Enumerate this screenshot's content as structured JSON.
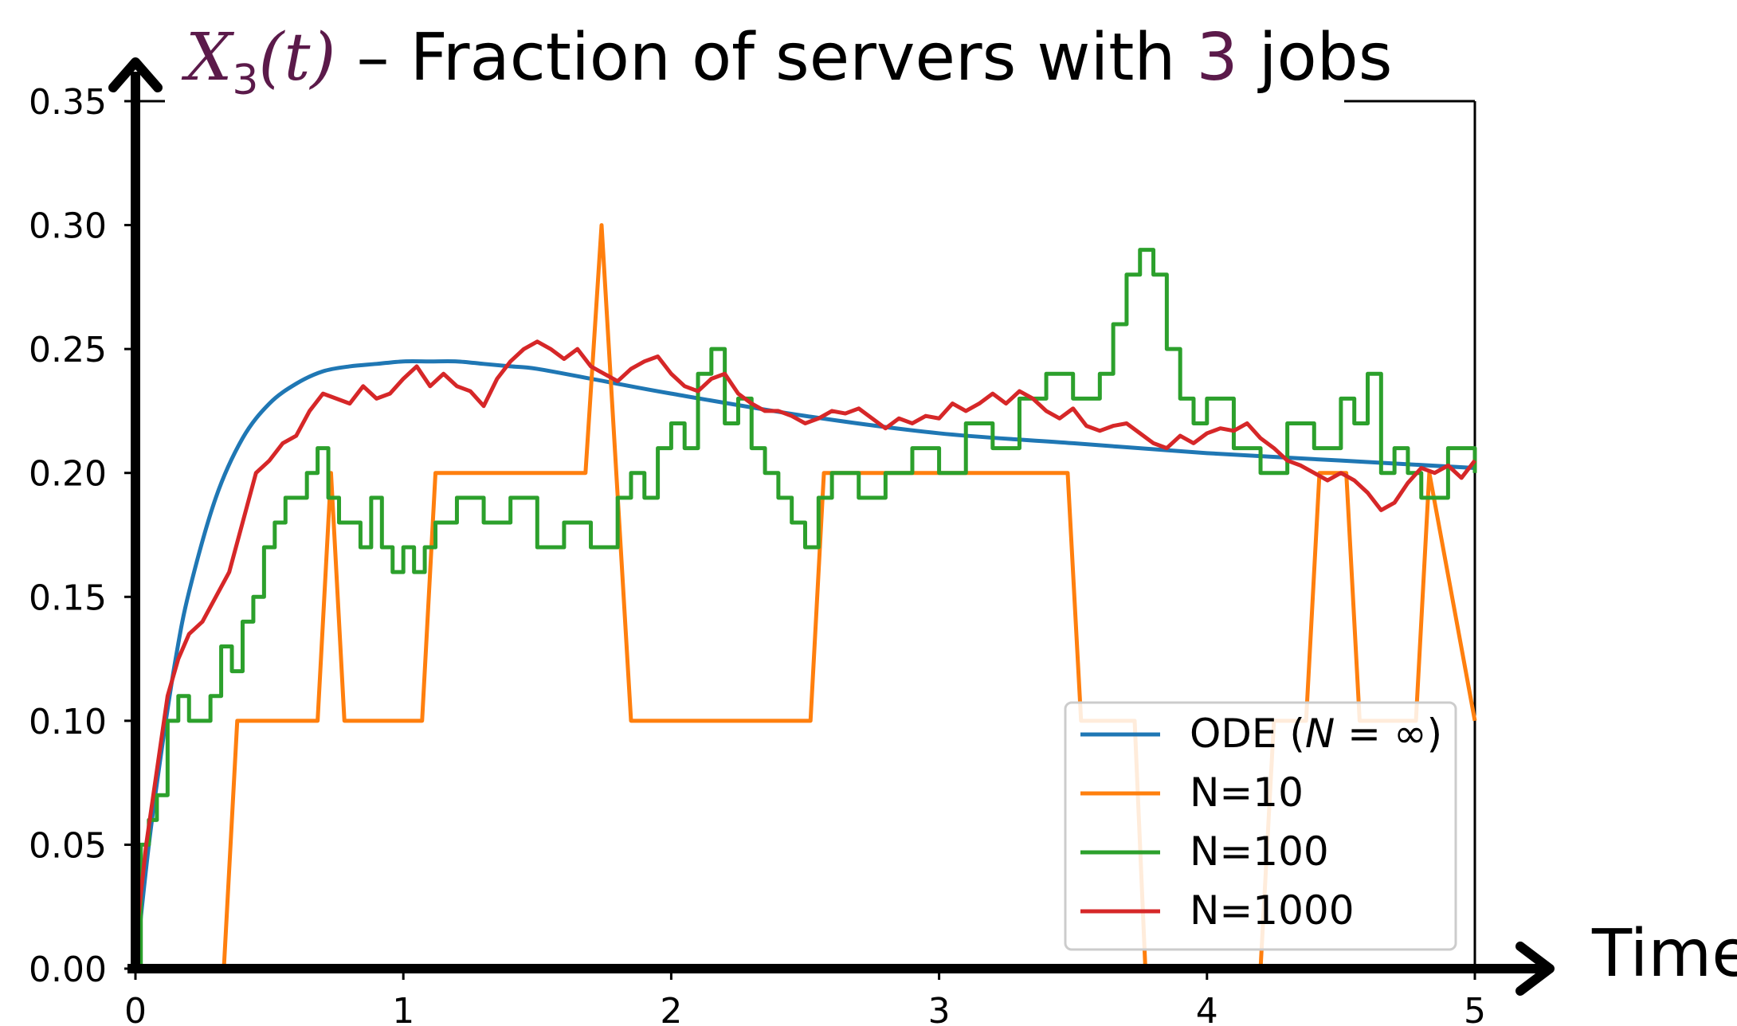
{
  "chart_data": {
    "type": "line",
    "title": {
      "math_var": "X",
      "math_sub": "3",
      "math_arg": "(t)",
      "dash": " – ",
      "text_pre": "Fraction of servers with ",
      "highlight": "3",
      "text_post": " jobs"
    },
    "xlabel": "Time",
    "ylabel": "",
    "xlim": [
      0,
      5
    ],
    "ylim": [
      0,
      0.35
    ],
    "xticks": [
      "0",
      "1",
      "2",
      "3",
      "4",
      "5"
    ],
    "yticks": [
      "0.00",
      "0.05",
      "0.10",
      "0.15",
      "0.20",
      "0.25",
      "0.30",
      "0.35"
    ],
    "grid": false,
    "legend_position": "lower-right",
    "colors": {
      "title_accent": "#5b1a4a",
      "ode": "#1f77b4",
      "n10": "#ff7f0e",
      "n100": "#2ca02c",
      "n1000": "#d62728"
    },
    "series": [
      {
        "name": "ODE (N = ∞)",
        "name_parts": [
          "ODE (",
          "N",
          " = ∞)"
        ],
        "style": "smooth",
        "x": [
          0,
          0.05,
          0.1,
          0.15,
          0.2,
          0.3,
          0.4,
          0.5,
          0.6,
          0.7,
          0.8,
          0.9,
          1.0,
          1.1,
          1.2,
          1.3,
          1.4,
          1.5,
          1.75,
          2.0,
          2.5,
          3.0,
          3.5,
          4.0,
          4.5,
          5.0
        ],
        "values": [
          0.0,
          0.05,
          0.09,
          0.125,
          0.152,
          0.19,
          0.214,
          0.228,
          0.236,
          0.241,
          0.243,
          0.244,
          0.245,
          0.245,
          0.245,
          0.244,
          0.243,
          0.242,
          0.237,
          0.232,
          0.223,
          0.216,
          0.212,
          0.208,
          0.205,
          0.202
        ]
      },
      {
        "name": "N=10",
        "style": "linear",
        "x": [
          0,
          0.33,
          0.38,
          0.68,
          0.73,
          0.78,
          1.07,
          1.12,
          1.68,
          1.74,
          1.85,
          2.52,
          2.57,
          3.48,
          3.53,
          3.73,
          3.77,
          4.2,
          4.25,
          4.37,
          4.42,
          4.52,
          4.57,
          4.78,
          4.83,
          5.0
        ],
        "values": [
          0,
          0,
          0.1,
          0.1,
          0.2,
          0.1,
          0.1,
          0.2,
          0.2,
          0.3,
          0.1,
          0.1,
          0.2,
          0.2,
          0.1,
          0.1,
          0.0,
          0.0,
          0.1,
          0.1,
          0.2,
          0.2,
          0.1,
          0.1,
          0.2,
          0.1
        ]
      },
      {
        "name": "N=100",
        "style": "step",
        "x": [
          0,
          0.02,
          0.05,
          0.08,
          0.12,
          0.16,
          0.2,
          0.24,
          0.28,
          0.32,
          0.36,
          0.4,
          0.44,
          0.48,
          0.52,
          0.56,
          0.6,
          0.64,
          0.68,
          0.72,
          0.76,
          0.8,
          0.84,
          0.88,
          0.92,
          0.96,
          1.0,
          1.04,
          1.08,
          1.12,
          1.16,
          1.2,
          1.3,
          1.4,
          1.5,
          1.6,
          1.7,
          1.8,
          1.85,
          1.9,
          1.95,
          2.0,
          2.05,
          2.1,
          2.15,
          2.2,
          2.25,
          2.3,
          2.35,
          2.4,
          2.45,
          2.5,
          2.55,
          2.6,
          2.7,
          2.8,
          2.9,
          3.0,
          3.1,
          3.2,
          3.3,
          3.4,
          3.5,
          3.6,
          3.65,
          3.7,
          3.75,
          3.8,
          3.85,
          3.9,
          3.95,
          4.0,
          4.1,
          4.2,
          4.3,
          4.4,
          4.5,
          4.55,
          4.6,
          4.65,
          4.7,
          4.75,
          4.8,
          4.9,
          5.0
        ],
        "values": [
          0.0,
          0.05,
          0.06,
          0.07,
          0.1,
          0.11,
          0.1,
          0.1,
          0.11,
          0.13,
          0.12,
          0.14,
          0.15,
          0.17,
          0.18,
          0.19,
          0.19,
          0.2,
          0.21,
          0.19,
          0.18,
          0.18,
          0.17,
          0.19,
          0.17,
          0.16,
          0.17,
          0.16,
          0.17,
          0.18,
          0.18,
          0.19,
          0.18,
          0.19,
          0.17,
          0.18,
          0.17,
          0.19,
          0.2,
          0.19,
          0.21,
          0.22,
          0.21,
          0.24,
          0.25,
          0.22,
          0.23,
          0.21,
          0.2,
          0.19,
          0.18,
          0.17,
          0.19,
          0.2,
          0.19,
          0.2,
          0.21,
          0.2,
          0.22,
          0.21,
          0.23,
          0.24,
          0.23,
          0.24,
          0.26,
          0.28,
          0.29,
          0.28,
          0.25,
          0.23,
          0.22,
          0.23,
          0.21,
          0.2,
          0.22,
          0.21,
          0.23,
          0.22,
          0.24,
          0.2,
          0.21,
          0.2,
          0.19,
          0.21,
          0.2
        ]
      },
      {
        "name": "N=1000",
        "style": "linear",
        "x": [
          0,
          0.04,
          0.08,
          0.12,
          0.16,
          0.2,
          0.25,
          0.3,
          0.35,
          0.4,
          0.45,
          0.5,
          0.55,
          0.6,
          0.65,
          0.7,
          0.75,
          0.8,
          0.85,
          0.9,
          0.95,
          1.0,
          1.05,
          1.1,
          1.15,
          1.2,
          1.25,
          1.3,
          1.35,
          1.4,
          1.45,
          1.5,
          1.55,
          1.6,
          1.65,
          1.7,
          1.75,
          1.8,
          1.85,
          1.9,
          1.95,
          2.0,
          2.05,
          2.1,
          2.15,
          2.2,
          2.25,
          2.3,
          2.35,
          2.4,
          2.45,
          2.5,
          2.55,
          2.6,
          2.65,
          2.7,
          2.75,
          2.8,
          2.85,
          2.9,
          2.95,
          3.0,
          3.05,
          3.1,
          3.15,
          3.2,
          3.25,
          3.3,
          3.35,
          3.4,
          3.45,
          3.5,
          3.55,
          3.6,
          3.65,
          3.7,
          3.75,
          3.8,
          3.85,
          3.9,
          3.95,
          4.0,
          4.05,
          4.1,
          4.15,
          4.2,
          4.25,
          4.3,
          4.35,
          4.4,
          4.45,
          4.5,
          4.55,
          4.6,
          4.65,
          4.7,
          4.75,
          4.8,
          4.85,
          4.9,
          4.95,
          5.0
        ],
        "values": [
          0.01,
          0.05,
          0.08,
          0.11,
          0.125,
          0.135,
          0.14,
          0.15,
          0.16,
          0.18,
          0.2,
          0.205,
          0.212,
          0.215,
          0.225,
          0.232,
          0.23,
          0.228,
          0.235,
          0.23,
          0.232,
          0.238,
          0.243,
          0.235,
          0.24,
          0.235,
          0.233,
          0.227,
          0.238,
          0.245,
          0.25,
          0.253,
          0.25,
          0.246,
          0.25,
          0.243,
          0.24,
          0.237,
          0.242,
          0.245,
          0.247,
          0.24,
          0.235,
          0.233,
          0.238,
          0.24,
          0.232,
          0.228,
          0.225,
          0.225,
          0.223,
          0.22,
          0.222,
          0.225,
          0.224,
          0.226,
          0.222,
          0.218,
          0.222,
          0.22,
          0.223,
          0.222,
          0.228,
          0.225,
          0.228,
          0.232,
          0.228,
          0.233,
          0.23,
          0.225,
          0.222,
          0.226,
          0.219,
          0.217,
          0.219,
          0.22,
          0.216,
          0.212,
          0.21,
          0.215,
          0.212,
          0.216,
          0.218,
          0.217,
          0.22,
          0.214,
          0.21,
          0.205,
          0.203,
          0.2,
          0.197,
          0.2,
          0.197,
          0.192,
          0.185,
          0.188,
          0.196,
          0.202,
          0.2,
          0.203,
          0.198,
          0.205
        ]
      }
    ]
  }
}
